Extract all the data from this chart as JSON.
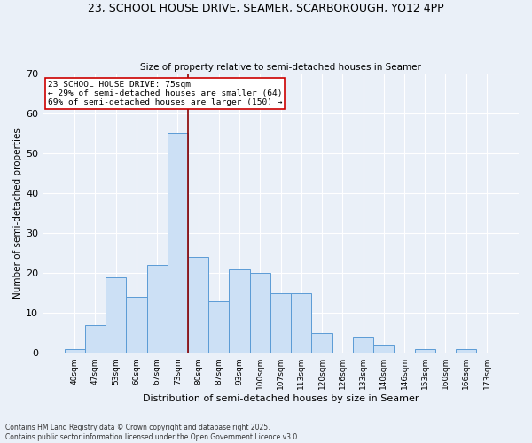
{
  "title1": "23, SCHOOL HOUSE DRIVE, SEAMER, SCARBOROUGH, YO12 4PP",
  "title2": "Size of property relative to semi-detached houses in Seamer",
  "xlabel": "Distribution of semi-detached houses by size in Seamer",
  "ylabel": "Number of semi-detached properties",
  "footnote": "Contains HM Land Registry data © Crown copyright and database right 2025.\nContains public sector information licensed under the Open Government Licence v3.0.",
  "bin_labels": [
    "40sqm",
    "47sqm",
    "53sqm",
    "60sqm",
    "67sqm",
    "73sqm",
    "80sqm",
    "87sqm",
    "93sqm",
    "100sqm",
    "107sqm",
    "113sqm",
    "120sqm",
    "126sqm",
    "133sqm",
    "140sqm",
    "146sqm",
    "153sqm",
    "160sqm",
    "166sqm",
    "173sqm"
  ],
  "counts": [
    1,
    7,
    19,
    14,
    22,
    55,
    24,
    13,
    21,
    20,
    15,
    15,
    5,
    0,
    4,
    2,
    0,
    1,
    0,
    1,
    0
  ],
  "property_label": "23 SCHOOL HOUSE DRIVE: 75sqm",
  "pct_smaller": 29,
  "n_smaller": 64,
  "pct_larger": 69,
  "n_larger": 150,
  "bar_color": "#cce0f5",
  "bar_edge_color": "#5b9bd5",
  "vline_color": "#8b0000",
  "annotation_box_color": "#ffffff",
  "annotation_box_edge": "#cc0000",
  "bg_color": "#eaf0f8",
  "grid_color": "#ffffff",
  "ylim": [
    0,
    70
  ],
  "vline_x": 5.5
}
